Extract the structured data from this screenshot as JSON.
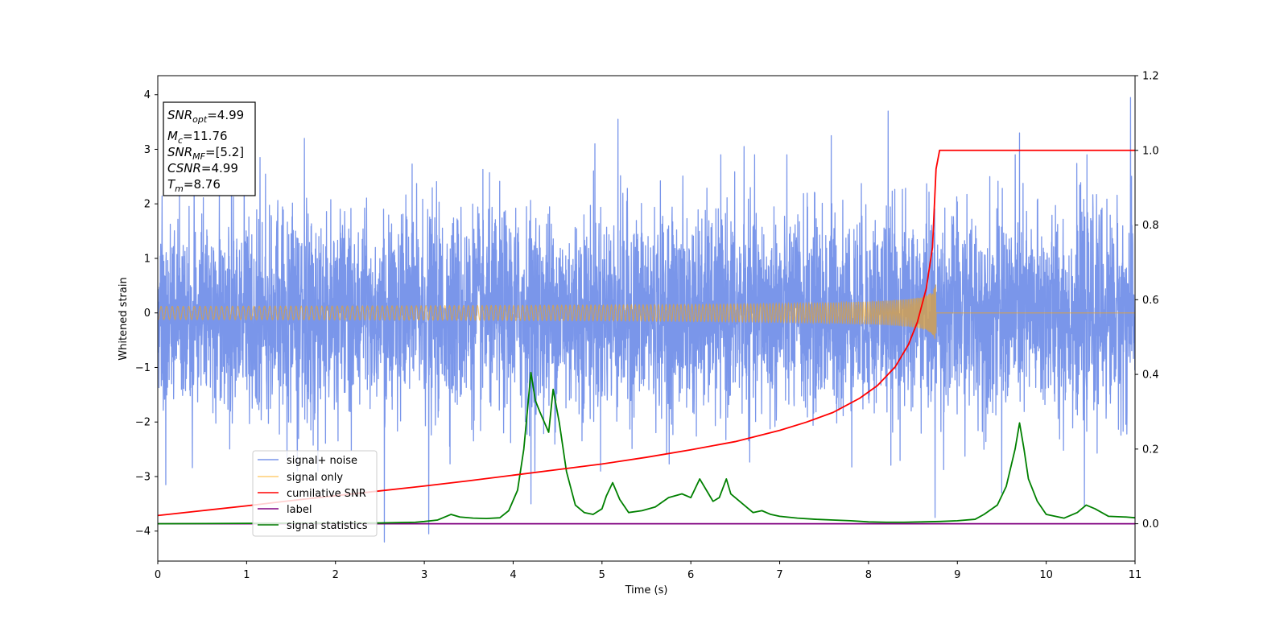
{
  "chart_data": {
    "type": "line",
    "xlabel": "Time (s)",
    "ylabel": "Whitened strain",
    "xlim": [
      0,
      11
    ],
    "ylim": [
      -4.55,
      4.35
    ],
    "y2lim": [
      -0.1,
      1.2
    ],
    "x_ticks": [
      "0",
      "1",
      "2",
      "3",
      "4",
      "5",
      "6",
      "7",
      "8",
      "9",
      "10",
      "11"
    ],
    "y_ticks": [
      "4",
      "3",
      "2",
      "1",
      "0",
      "−1",
      "−2",
      "−3",
      "−4"
    ],
    "y2_ticks": [
      "1.2",
      "1.0",
      "0.8",
      "0.6",
      "0.4",
      "0.2",
      "0.0"
    ],
    "grid": false,
    "legend_position": "lower-left",
    "legend": [
      {
        "label": "signal+ noise",
        "color": "#4169E1"
      },
      {
        "label": "signal only",
        "color": "#FFA500"
      },
      {
        "label": "cumilative SNR",
        "color": "#FF0000"
      },
      {
        "label": "label",
        "color": "#800080"
      },
      {
        "label": "signal statistics",
        "color": "#008000"
      }
    ],
    "info_box": {
      "snr_opt": {
        "main": "SNR",
        "sub": "opt",
        "value": "=4.99"
      },
      "mc": {
        "main": "M",
        "sub": "c",
        "value": "=11.76"
      },
      "snr_mf": {
        "main": "SNR",
        "sub": "MF",
        "value": "=[5.2]"
      },
      "csnr": {
        "main": "CSNR",
        "value": "=4.99"
      },
      "tm": {
        "main": "T",
        "sub": "m",
        "value": "=8.76"
      }
    },
    "series": [
      {
        "name": "signal+ noise",
        "axis": "left",
        "color": "#4169E1",
        "description": "whitened noise, roughly +/-2.5 with spikes up to 3.9 and down to -4.2",
        "spikes": [
          [
            0.09,
            -3.15
          ],
          [
            0.83,
            2.95
          ],
          [
            1.15,
            2.85
          ],
          [
            1.65,
            3.2
          ],
          [
            2.55,
            -4.2
          ],
          [
            3.05,
            -4.05
          ],
          [
            4.2,
            -3.5
          ],
          [
            4.92,
            3.1
          ],
          [
            5.18,
            3.55
          ],
          [
            6.6,
            3.05
          ],
          [
            7.58,
            3.25
          ],
          [
            8.22,
            3.7
          ],
          [
            8.75,
            -3.75
          ],
          [
            9.5,
            -3.3
          ],
          [
            9.7,
            3.3
          ],
          [
            10.43,
            -3.55
          ],
          [
            10.95,
            3.95
          ]
        ]
      },
      {
        "name": "signal only",
        "axis": "left",
        "color": "#FFA500",
        "merger_time": 8.76,
        "peak_amplitude": 0.82
      },
      {
        "name": "cumilative SNR",
        "axis": "right",
        "color": "#FF0000",
        "x": [
          0,
          0.5,
          1,
          1.5,
          2,
          2.5,
          3,
          3.5,
          4,
          4.5,
          5,
          5.5,
          6,
          6.5,
          7,
          7.3,
          7.6,
          7.9,
          8.1,
          8.3,
          8.45,
          8.55,
          8.65,
          8.72,
          8.76,
          8.8,
          11
        ],
        "y": [
          0.022,
          0.035,
          0.048,
          0.062,
          0.075,
          0.088,
          0.101,
          0.115,
          0.13,
          0.145,
          0.16,
          0.178,
          0.198,
          0.22,
          0.25,
          0.272,
          0.298,
          0.336,
          0.37,
          0.42,
          0.48,
          0.54,
          0.63,
          0.74,
          0.95,
          1.0,
          1.0
        ]
      },
      {
        "name": "label",
        "axis": "right",
        "color": "#800080",
        "x": [
          0,
          11
        ],
        "y": [
          0.0,
          0.0
        ]
      },
      {
        "name": "signal statistics",
        "axis": "right",
        "color": "#008000",
        "x": [
          0,
          1.0,
          2.0,
          2.5,
          2.9,
          3.0,
          3.15,
          3.3,
          3.4,
          3.55,
          3.7,
          3.85,
          3.95,
          4.05,
          4.12,
          4.2,
          4.25,
          4.3,
          4.4,
          4.45,
          4.52,
          4.6,
          4.7,
          4.8,
          4.9,
          5.0,
          5.05,
          5.12,
          5.2,
          5.3,
          5.45,
          5.6,
          5.75,
          5.9,
          6.0,
          6.1,
          6.2,
          6.25,
          6.32,
          6.4,
          6.45,
          6.55,
          6.7,
          6.8,
          6.9,
          7.0,
          7.2,
          7.4,
          7.6,
          7.8,
          8.0,
          8.2,
          8.4,
          8.6,
          8.8,
          9.0,
          9.2,
          9.3,
          9.45,
          9.55,
          9.65,
          9.7,
          9.75,
          9.8,
          9.9,
          10.0,
          10.2,
          10.35,
          10.45,
          10.55,
          10.7,
          10.9,
          11.0
        ],
        "y": [
          0.0,
          0.001,
          0.002,
          0.002,
          0.004,
          0.006,
          0.01,
          0.025,
          0.018,
          0.015,
          0.014,
          0.016,
          0.035,
          0.09,
          0.2,
          0.405,
          0.33,
          0.3,
          0.245,
          0.36,
          0.27,
          0.14,
          0.05,
          0.03,
          0.025,
          0.04,
          0.075,
          0.11,
          0.065,
          0.03,
          0.035,
          0.045,
          0.07,
          0.08,
          0.07,
          0.12,
          0.08,
          0.06,
          0.07,
          0.12,
          0.08,
          0.06,
          0.03,
          0.035,
          0.025,
          0.02,
          0.015,
          0.012,
          0.01,
          0.008,
          0.005,
          0.004,
          0.004,
          0.005,
          0.006,
          0.008,
          0.012,
          0.025,
          0.05,
          0.1,
          0.2,
          0.27,
          0.2,
          0.12,
          0.06,
          0.025,
          0.015,
          0.03,
          0.05,
          0.04,
          0.02,
          0.018,
          0.016
        ]
      }
    ]
  }
}
